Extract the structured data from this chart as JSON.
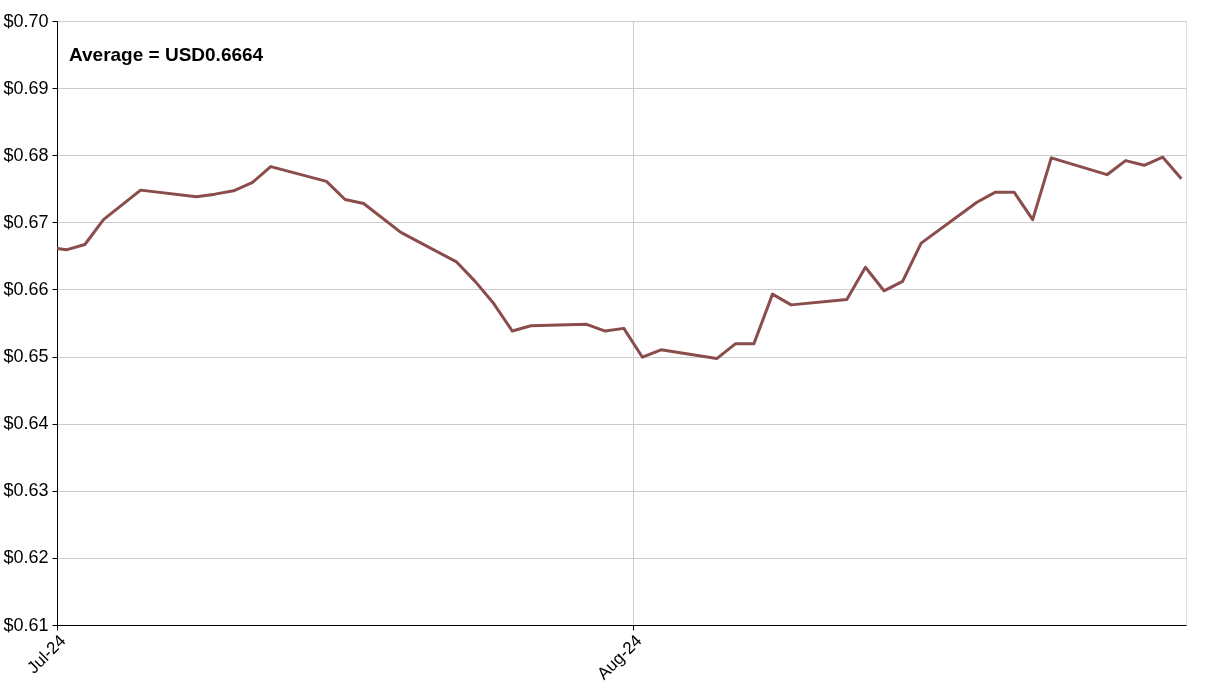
{
  "chart_data": {
    "type": "line",
    "annotations": [
      "Average = USD0.6664"
    ],
    "x": [
      "2024-07-01T00:00",
      "2024-07-01T12:00",
      "2024-07-02T12:00",
      "2024-07-03T12:00",
      "2024-07-04T12:00",
      "2024-07-05T12:00",
      "2024-07-08T12:00",
      "2024-07-09T12:00",
      "2024-07-10T12:00",
      "2024-07-11T12:00",
      "2024-07-12T12:00",
      "2024-07-15T12:00",
      "2024-07-16T12:00",
      "2024-07-17T12:00",
      "2024-07-19T12:00",
      "2024-07-22T12:00",
      "2024-07-23T12:00",
      "2024-07-24T12:00",
      "2024-07-25T12:00",
      "2024-07-26T12:00",
      "2024-07-29T12:00",
      "2024-07-30T12:00",
      "2024-07-31T12:00",
      "2024-08-01T12:00",
      "2024-08-02T12:00",
      "2024-08-05T12:00",
      "2024-08-06T12:00",
      "2024-08-07T12:00",
      "2024-08-08T12:00",
      "2024-08-09T12:00",
      "2024-08-12T12:00",
      "2024-08-13T12:00",
      "2024-08-14T12:00",
      "2024-08-15T12:00",
      "2024-08-16T12:00",
      "2024-08-19T12:00",
      "2024-08-20T12:00",
      "2024-08-21T12:00",
      "2024-08-22T12:00",
      "2024-08-23T12:00",
      "2024-08-26T12:00",
      "2024-08-27T12:00",
      "2024-08-28T12:00",
      "2024-08-29T12:00",
      "2024-08-30T12:00"
    ],
    "series": [
      {
        "color": "#8b4c4c",
        "values": [
          0.6661,
          0.6659,
          0.6667,
          0.6704,
          0.6726,
          0.6748,
          0.6738,
          0.6742,
          0.6747,
          0.6759,
          0.6783,
          0.6761,
          0.6734,
          0.6728,
          0.6685,
          0.6641,
          0.6612,
          0.6579,
          0.6538,
          0.6546,
          0.6548,
          0.6538,
          0.6542,
          0.6499,
          0.651,
          0.6497,
          0.6519,
          0.6519,
          0.6593,
          0.6577,
          0.6585,
          0.6633,
          0.6598,
          0.6612,
          0.6669,
          0.673,
          0.6745,
          0.6745,
          0.6704,
          0.6796,
          0.6771,
          0.6792,
          0.6785,
          0.6797,
          0.6765
        ]
      }
    ],
    "xlim": [
      "2024-07-01T00:00",
      "2024-08-30T18:00"
    ],
    "xticks": [
      {
        "value": "2024-07-01",
        "label": "Jul-24"
      },
      {
        "value": "2024-08-01",
        "label": "Aug-24"
      }
    ],
    "ylim": [
      0.61,
      0.7
    ],
    "yticks": [
      {
        "value": 0.61,
        "label": "$0.61"
      },
      {
        "value": 0.62,
        "label": "$0.62"
      },
      {
        "value": 0.63,
        "label": "$0.63"
      },
      {
        "value": 0.64,
        "label": "$0.64"
      },
      {
        "value": 0.65,
        "label": "$0.65"
      },
      {
        "value": 0.66,
        "label": "$0.66"
      },
      {
        "value": 0.67,
        "label": "$0.67"
      },
      {
        "value": 0.68,
        "label": "$0.68"
      },
      {
        "value": 0.69,
        "label": "$0.69"
      },
      {
        "value": 0.7,
        "label": "$0.70"
      }
    ],
    "grid": true,
    "line_style": "solid",
    "marker": "none"
  }
}
